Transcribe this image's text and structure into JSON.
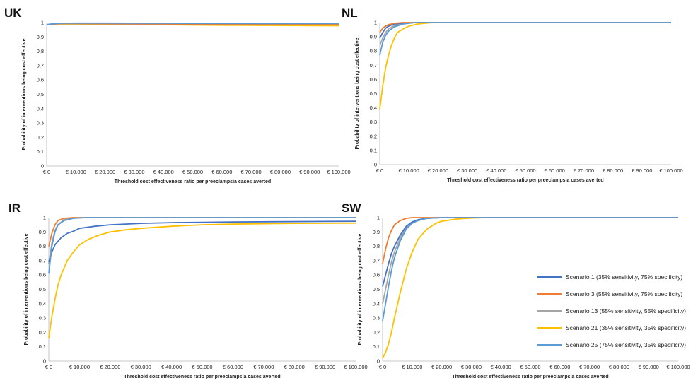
{
  "series_styles": [
    {
      "name": "Scenario 1 (35% sensitivity, 75% specificity)",
      "color": "#4472c4"
    },
    {
      "name": "Scenario 3 (55% sensitivity, 75% specificity)",
      "color": "#ed7d31"
    },
    {
      "name": "Scenario 13 (55% sensitivity, 55% specificity)",
      "color": "#a5a5a5"
    },
    {
      "name": "Scenario 21 (35% sensitivity, 35% specificity)",
      "color": "#ffc000"
    },
    {
      "name": "Scenario 25 (75% sensitivity, 35% specificity)",
      "color": "#5b9bd5"
    }
  ],
  "legend": {
    "placement": "bottom-right of SW panel"
  },
  "chart_data": [
    {
      "panel": "UK",
      "type": "line",
      "title": "UK",
      "xlabel": "Threshold cost effectiveness ratio per preeclampsia cases averted",
      "ylabel": "Probability of interventions being cost effective",
      "xlim": [
        0,
        100000
      ],
      "ylim": [
        0,
        1
      ],
      "grid": false,
      "x_tick_labels": [
        "€ 0",
        "€ 10.000",
        "€ 20.000",
        "€ 30.000",
        "€ 40.000",
        "€ 50.000",
        "€ 60.000",
        "€ 70.000",
        "€ 80.000",
        "€ 90.000",
        "€ 100.000"
      ],
      "y_tick_labels": [
        "0",
        "0,1",
        "0,2",
        "0,3",
        "0,4",
        "0,5",
        "0,6",
        "0,7",
        "0,8",
        "0,9",
        "1"
      ],
      "series": [
        {
          "name": "Scenario 1 (35% sensitivity, 75% specificity)",
          "x": [
            0,
            2000,
            5000,
            10000,
            20000,
            40000,
            60000,
            80000,
            100000
          ],
          "values": [
            0.985,
            0.99,
            0.993,
            0.994,
            0.994,
            0.993,
            0.992,
            0.992,
            0.991
          ]
        },
        {
          "name": "Scenario 3 (55% sensitivity, 75% specificity)",
          "x": [
            0,
            2000,
            5000,
            10000,
            20000,
            40000,
            60000,
            80000,
            100000
          ],
          "values": [
            0.985,
            0.99,
            0.993,
            0.993,
            0.992,
            0.99,
            0.988,
            0.987,
            0.986
          ]
        },
        {
          "name": "Scenario 13 (55% sensitivity, 55% specificity)",
          "x": [
            0,
            2000,
            5000,
            10000,
            20000,
            40000,
            60000,
            80000,
            100000
          ],
          "values": [
            0.985,
            0.99,
            0.992,
            0.992,
            0.991,
            0.989,
            0.987,
            0.986,
            0.985
          ]
        },
        {
          "name": "Scenario 21 (35% sensitivity, 35% specificity)",
          "x": [
            0,
            2000,
            5000,
            10000,
            20000,
            40000,
            60000,
            80000,
            100000
          ],
          "values": [
            0.985,
            0.99,
            0.991,
            0.99,
            0.988,
            0.985,
            0.982,
            0.98,
            0.978
          ]
        },
        {
          "name": "Scenario 25 (75% sensitivity, 35% specificity)",
          "x": [
            0,
            2000,
            5000,
            10000,
            20000,
            40000,
            60000,
            80000,
            100000
          ],
          "values": [
            0.985,
            0.992,
            0.995,
            0.996,
            0.996,
            0.995,
            0.994,
            0.993,
            0.993
          ]
        }
      ]
    },
    {
      "panel": "NL",
      "type": "line",
      "title": "NL",
      "xlabel": "Threshold cost effectiveness ratio per preeclampsia cases averted",
      "ylabel": "Probability of interventions being cost effective",
      "xlim": [
        0,
        100000
      ],
      "ylim": [
        0,
        1
      ],
      "grid": false,
      "x_tick_labels": [
        "€ 0",
        "€ 10.000",
        "€ 20.000",
        "€ 30.000",
        "€ 40.000",
        "€ 50.000",
        "€ 60.000",
        "€ 70.000",
        "€ 80.000",
        "€ 90.000",
        "€ 100.000"
      ],
      "y_tick_labels": [
        "0",
        "0,1",
        "0,2",
        "0,3",
        "0,4",
        "0,5",
        "0,6",
        "0,7",
        "0,8",
        "0,9",
        "1"
      ],
      "series": [
        {
          "name": "Scenario 1 (35% sensitivity, 75% specificity)",
          "x": [
            0,
            1000,
            2000,
            3000,
            5000,
            8000,
            12000,
            20000,
            100000
          ],
          "values": [
            0.89,
            0.93,
            0.96,
            0.975,
            0.99,
            0.997,
            1,
            1,
            1
          ]
        },
        {
          "name": "Scenario 3 (55% sensitivity, 75% specificity)",
          "x": [
            0,
            1000,
            2000,
            3000,
            5000,
            8000,
            12000,
            20000,
            100000
          ],
          "values": [
            0.93,
            0.96,
            0.975,
            0.985,
            0.995,
            1,
            1,
            1,
            1
          ]
        },
        {
          "name": "Scenario 13 (55% sensitivity, 55% specificity)",
          "x": [
            0,
            1000,
            2000,
            3000,
            5000,
            8000,
            12000,
            20000,
            100000
          ],
          "values": [
            0.84,
            0.89,
            0.93,
            0.955,
            0.98,
            0.995,
            1,
            1,
            1
          ]
        },
        {
          "name": "Scenario 21 (35% sensitivity, 35% specificity)",
          "x": [
            0,
            1000,
            2000,
            3000,
            4000,
            5000,
            6000,
            8000,
            10000,
            13000,
            17000,
            20000,
            100000
          ],
          "values": [
            0.39,
            0.55,
            0.68,
            0.77,
            0.84,
            0.89,
            0.93,
            0.955,
            0.975,
            0.99,
            0.998,
            1,
            1
          ]
        },
        {
          "name": "Scenario 25 (75% sensitivity, 35% specificity)",
          "x": [
            0,
            1000,
            2000,
            3000,
            5000,
            8000,
            12000,
            20000,
            100000
          ],
          "values": [
            0.77,
            0.86,
            0.91,
            0.94,
            0.97,
            0.99,
            1,
            1,
            1
          ]
        }
      ]
    },
    {
      "panel": "IR",
      "type": "line",
      "title": "IR",
      "xlabel": "Threshold cost effectiveness ratio per preeclampsia cases averted",
      "ylabel": "Probability of interventions being cost effective",
      "xlim": [
        0,
        100000
      ],
      "ylim": [
        0,
        1
      ],
      "grid": false,
      "x_tick_labels": [
        "€ 0",
        "€ 10.000",
        "€ 20.000",
        "€ 30.000",
        "€ 40.000",
        "€ 50.000",
        "€ 60.000",
        "€ 70.000",
        "€ 80.000",
        "€ 90.000",
        "€ 100.000"
      ],
      "y_tick_labels": [
        "0",
        "0,1",
        "0,2",
        "0,3",
        "0,4",
        "0,5",
        "0,6",
        "0,7",
        "0,8",
        "0,9",
        "1"
      ],
      "series": [
        {
          "name": "Scenario 1 (35% sensitivity, 75% specificity)",
          "x": [
            0,
            1000,
            2000,
            4000,
            6000,
            8000,
            10000,
            15000,
            20000,
            30000,
            40000,
            60000,
            100000
          ],
          "values": [
            0.69,
            0.76,
            0.81,
            0.86,
            0.89,
            0.905,
            0.925,
            0.94,
            0.95,
            0.96,
            0.965,
            0.97,
            0.975
          ]
        },
        {
          "name": "Scenario 3 (55% sensitivity, 75% specificity)",
          "x": [
            0,
            1000,
            2000,
            3000,
            5000,
            8000,
            10000,
            100000
          ],
          "values": [
            0.8,
            0.89,
            0.95,
            0.98,
            0.995,
            1,
            1,
            1
          ]
        },
        {
          "name": "Scenario 13 (55% sensitivity, 55% specificity)",
          "x": [
            0,
            1000,
            2000,
            3000,
            5000,
            8000,
            12000,
            100000
          ],
          "values": [
            0.68,
            0.82,
            0.91,
            0.95,
            0.985,
            0.997,
            1,
            1
          ]
        },
        {
          "name": "Scenario 21 (35% sensitivity, 35% specificity)",
          "x": [
            0,
            1000,
            2000,
            3000,
            4000,
            6000,
            8000,
            10000,
            13000,
            16000,
            20000,
            25000,
            30000,
            40000,
            50000,
            60000,
            80000,
            100000
          ],
          "values": [
            0.16,
            0.31,
            0.43,
            0.53,
            0.6,
            0.7,
            0.76,
            0.81,
            0.85,
            0.875,
            0.9,
            0.915,
            0.925,
            0.94,
            0.95,
            0.955,
            0.96,
            0.962
          ]
        },
        {
          "name": "Scenario 25 (75% sensitivity, 35% specificity)",
          "x": [
            0,
            1000,
            2000,
            3000,
            5000,
            8000,
            12000,
            100000
          ],
          "values": [
            0.61,
            0.8,
            0.9,
            0.95,
            0.98,
            0.995,
            1,
            1
          ]
        }
      ]
    },
    {
      "panel": "SW",
      "type": "line",
      "title": "SW",
      "xlabel": "Threshold cost effectiveness ratio per preeclampsia cases averted",
      "ylabel": "Probability of interventions being cost effective",
      "xlim": [
        0,
        100000
      ],
      "ylim": [
        0,
        1
      ],
      "grid": false,
      "x_tick_labels": [
        "€ 0",
        "€ 10.000",
        "€ 20.000",
        "€ 30.000",
        "€ 40.000",
        "€ 50.000",
        "€ 60.000",
        "€ 70.000",
        "€ 80.000",
        "€ 90.000",
        "€ 100.000"
      ],
      "y_tick_labels": [
        "0",
        "0,1",
        "0,2",
        "0,3",
        "0,4",
        "0,5",
        "0,6",
        "0,7",
        "0,8",
        "0,9",
        "1"
      ],
      "series": [
        {
          "name": "Scenario 1 (35% sensitivity, 75% specificity)",
          "x": [
            0,
            1000,
            2000,
            3000,
            4000,
            6000,
            8000,
            10000,
            12000,
            15000,
            20000,
            100000
          ],
          "values": [
            0.52,
            0.6,
            0.68,
            0.75,
            0.8,
            0.88,
            0.94,
            0.97,
            0.985,
            0.995,
            1,
            1
          ]
        },
        {
          "name": "Scenario 3 (55% sensitivity, 75% specificity)",
          "x": [
            0,
            1000,
            2000,
            3000,
            4000,
            6000,
            8000,
            10000,
            12000,
            100000
          ],
          "values": [
            0.68,
            0.78,
            0.86,
            0.91,
            0.95,
            0.98,
            0.995,
            1,
            1,
            1
          ]
        },
        {
          "name": "Scenario 13 (55% sensitivity, 55% specificity)",
          "x": [
            0,
            1000,
            2000,
            3000,
            4000,
            6000,
            8000,
            10000,
            12000,
            15000,
            20000,
            100000
          ],
          "values": [
            0.4,
            0.5,
            0.6,
            0.69,
            0.76,
            0.86,
            0.93,
            0.965,
            0.985,
            0.995,
            1,
            1
          ]
        },
        {
          "name": "Scenario 21 (35% sensitivity, 35% specificity)",
          "x": [
            0,
            1000,
            2000,
            3000,
            4000,
            6000,
            8000,
            10000,
            12000,
            15000,
            18000,
            20000,
            25000,
            30000,
            35000,
            100000
          ],
          "values": [
            0.02,
            0.06,
            0.12,
            0.2,
            0.3,
            0.48,
            0.64,
            0.76,
            0.85,
            0.92,
            0.96,
            0.975,
            0.99,
            0.997,
            1,
            1
          ]
        },
        {
          "name": "Scenario 25 (75% sensitivity, 35% specificity)",
          "x": [
            0,
            1000,
            2000,
            3000,
            4000,
            6000,
            8000,
            10000,
            12000,
            15000,
            20000,
            100000
          ],
          "values": [
            0.28,
            0.4,
            0.52,
            0.63,
            0.72,
            0.84,
            0.92,
            0.96,
            0.98,
            0.995,
            1,
            1
          ]
        }
      ]
    }
  ]
}
